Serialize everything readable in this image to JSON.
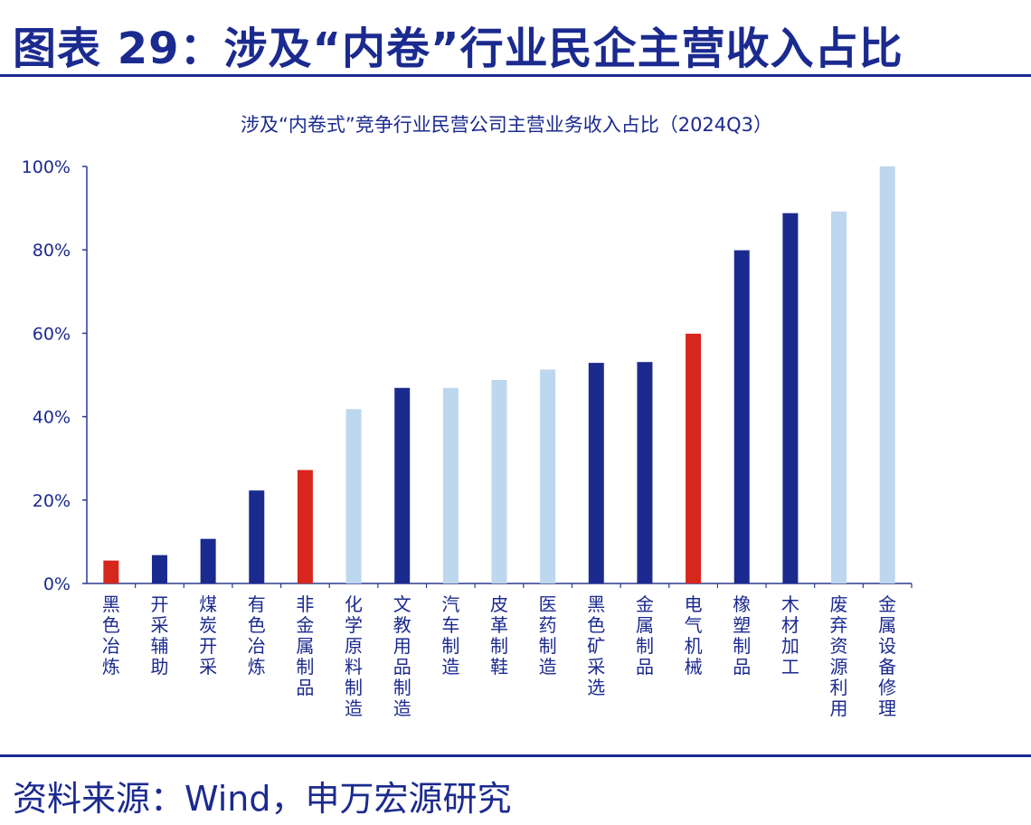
{
  "header": {
    "title": "图表 29：涉及“内卷”行业民企主营收入占比"
  },
  "footer": {
    "source": "资料来源：Wind，申万宏源研究"
  },
  "colors": {
    "dark_blue": "#1b2a8f",
    "light_blue": "#bdd7ee",
    "red": "#d7261c",
    "axis": "#2b3a8f",
    "text": "#1b2a8f"
  },
  "chart_data": {
    "type": "bar",
    "title": "涉及“内卷式”竞争行业民营公司主营业务收入占比（2024Q3）",
    "xlabel": "",
    "ylabel": "",
    "ylim": [
      0,
      100
    ],
    "yticks": [
      "0%",
      "20%",
      "40%",
      "60%",
      "80%",
      "100%"
    ],
    "grid": false,
    "legend": "none",
    "categories": [
      "黑色冶炼",
      "开采辅助",
      "煤炭开采",
      "有色冶炼",
      "非金属制品",
      "化学原料制造",
      "文教用品制造",
      "汽车制造",
      "皮革制鞋",
      "医药制造",
      "黑色矿采选",
      "金属制品",
      "电气机械",
      "橡塑制品",
      "木材加工",
      "废弃资源利用",
      "金属设备修理"
    ],
    "values": [
      5.5,
      6.8,
      10.7,
      22.3,
      27.2,
      41.8,
      46.9,
      46.9,
      48.8,
      51.3,
      52.9,
      53.1,
      59.9,
      79.9,
      88.8,
      89.2,
      100
    ],
    "bar_colors": [
      "red",
      "dark_blue",
      "dark_blue",
      "dark_blue",
      "red",
      "light_blue",
      "dark_blue",
      "light_blue",
      "light_blue",
      "light_blue",
      "dark_blue",
      "dark_blue",
      "red",
      "dark_blue",
      "dark_blue",
      "light_blue",
      "light_blue"
    ]
  }
}
